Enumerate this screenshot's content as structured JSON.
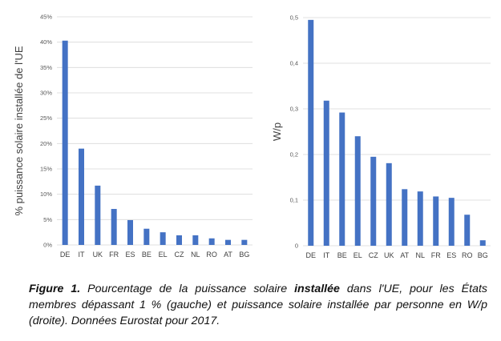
{
  "chart_data": [
    {
      "type": "bar",
      "ylabel": "% puissance solaire installée de l'UE",
      "categories": [
        "DE",
        "IT",
        "UK",
        "FR",
        "ES",
        "BE",
        "EL",
        "CZ",
        "NL",
        "RO",
        "AT",
        "BG"
      ],
      "values": [
        40.3,
        19.0,
        11.7,
        7.1,
        4.9,
        3.2,
        2.5,
        1.9,
        1.9,
        1.3,
        1.0,
        1.0
      ],
      "ylim": [
        0,
        45
      ],
      "yticks": [
        "0%",
        "5%",
        "10%",
        "15%",
        "20%",
        "25%",
        "30%",
        "35%",
        "40%",
        "45%"
      ],
      "grid": true,
      "color": "#4472c4"
    },
    {
      "type": "bar",
      "ylabel": "W/p",
      "categories": [
        "DE",
        "IT",
        "BE",
        "EL",
        "CZ",
        "UK",
        "AT",
        "NL",
        "FR",
        "ES",
        "RO",
        "BG"
      ],
      "values": [
        0.495,
        0.318,
        0.292,
        0.24,
        0.195,
        0.181,
        0.124,
        0.119,
        0.108,
        0.105,
        0.068,
        0.012
      ],
      "ylim": [
        0,
        0.5
      ],
      "yticks": [
        "0",
        "0,1",
        "0,2",
        "0,3",
        "0,4",
        "0,5"
      ],
      "grid": true,
      "color": "#4472c4"
    }
  ],
  "caption": {
    "label": "Figure 1.",
    "text1": " Pourcentage de la puissance solaire ",
    "bold": "installée",
    "text2": " dans l'UE, pour les États membres dépassant 1 % (gauche) et puissance solaire installée par personne en W/p (droite). Données Eurostat pour 2017."
  }
}
